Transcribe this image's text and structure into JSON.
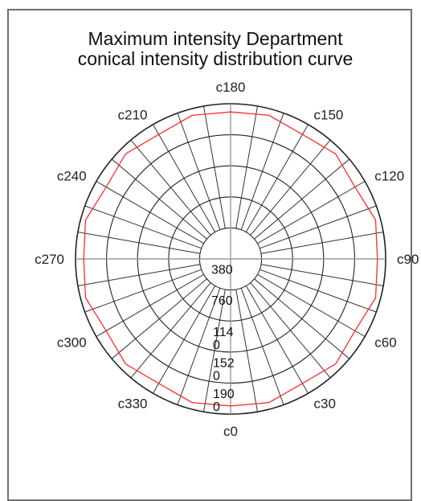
{
  "chart_data": {
    "type": "polar",
    "title": [
      "Maximum intensity Department",
      "conical intensity distribution curve"
    ],
    "angle_labels": [
      {
        "text": "c180",
        "angle": 180
      },
      {
        "text": "c150",
        "angle": 150
      },
      {
        "text": "c120",
        "angle": 120
      },
      {
        "text": "c90",
        "angle": 90
      },
      {
        "text": "c60",
        "angle": 60
      },
      {
        "text": "c30",
        "angle": 30
      },
      {
        "text": "c0",
        "angle": 0
      },
      {
        "text": "c330",
        "angle": 330
      },
      {
        "text": "c300",
        "angle": 300
      },
      {
        "text": "c270",
        "angle": 270
      },
      {
        "text": "c240",
        "angle": 240
      },
      {
        "text": "c210",
        "angle": 210
      }
    ],
    "radial_ticks": [
      380,
      760,
      1140,
      1520,
      1900
    ],
    "radial_tick_lines": [
      [
        "380"
      ],
      [
        "760"
      ],
      [
        "114",
        "0"
      ],
      [
        "152",
        "0"
      ],
      [
        "190",
        "0"
      ]
    ],
    "rlim": [
      0,
      1900
    ],
    "grid": true,
    "series": [
      {
        "color": "#ff2a2a",
        "angles": [
          0,
          15,
          30,
          45,
          60,
          75,
          90,
          105,
          120,
          135,
          150,
          165,
          180,
          195,
          210,
          225,
          240,
          255,
          270,
          285,
          300,
          315,
          330,
          345
        ],
        "values": [
          1800,
          1820,
          1760,
          1820,
          1760,
          1840,
          1800,
          1840,
          1760,
          1820,
          1760,
          1820,
          1800,
          1820,
          1760,
          1820,
          1760,
          1840,
          1800,
          1840,
          1760,
          1820,
          1760,
          1820
        ]
      }
    ]
  }
}
